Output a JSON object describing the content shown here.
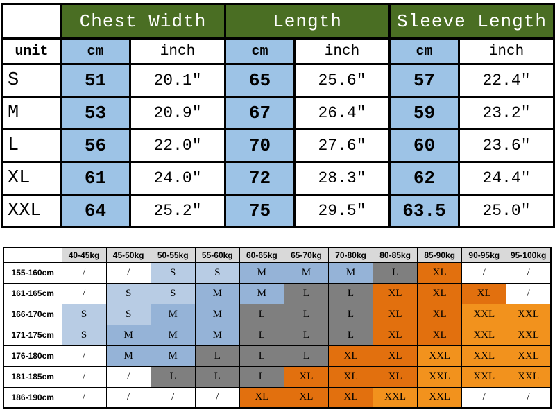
{
  "chart_data": [
    {
      "type": "table",
      "name": "garment_measurements",
      "corner_label": "",
      "unit_label": "unit",
      "groups": [
        "Chest Width",
        "Length",
        "Sleeve Length"
      ],
      "sub_columns": [
        "cm",
        "inch",
        "cm",
        "inch",
        "cm",
        "inch"
      ],
      "rows": [
        {
          "size": "S",
          "values": [
            "51",
            "20.1\"",
            "65",
            "25.6\"",
            "57",
            "22.4\""
          ]
        },
        {
          "size": "M",
          "values": [
            "53",
            "20.9\"",
            "67",
            "26.4\"",
            "59",
            "23.2\""
          ]
        },
        {
          "size": "L",
          "values": [
            "56",
            "22.0\"",
            "70",
            "27.6\"",
            "60",
            "23.6\""
          ]
        },
        {
          "size": "XL",
          "values": [
            "61",
            "24.0\"",
            "72",
            "28.3\"",
            "62",
            "24.4\""
          ]
        },
        {
          "size": "XXL",
          "values": [
            "64",
            "25.2\"",
            "75",
            "29.5\"",
            "63.5",
            "25.0\""
          ]
        }
      ]
    },
    {
      "type": "table",
      "name": "size_by_height_and_weight",
      "corner_label": "",
      "weight_columns": [
        "40-45kg",
        "45-50kg",
        "50-55kg",
        "55-60kg",
        "60-65kg",
        "65-70kg",
        "70-80kg",
        "80-85kg",
        "85-90kg",
        "90-95kg",
        "95-100kg"
      ],
      "rows": [
        {
          "height": "155-160cm",
          "cells": [
            "/",
            "/",
            "S",
            "S",
            "M",
            "M",
            "M",
            "L",
            "XL",
            "/",
            "/"
          ]
        },
        {
          "height": "161-165cm",
          "cells": [
            "/",
            "S",
            "S",
            "M",
            "M",
            "L",
            "L",
            "XL",
            "XL",
            "XL",
            "/"
          ]
        },
        {
          "height": "166-170cm",
          "cells": [
            "S",
            "S",
            "M",
            "M",
            "L",
            "L",
            "L",
            "XL",
            "XL",
            "XXL",
            "XXL"
          ]
        },
        {
          "height": "171-175cm",
          "cells": [
            "S",
            "M",
            "M",
            "M",
            "L",
            "L",
            "L",
            "XL",
            "XL",
            "XXL",
            "XXL"
          ]
        },
        {
          "height": "176-180cm",
          "cells": [
            "/",
            "M",
            "M",
            "L",
            "L",
            "L",
            "XL",
            "XL",
            "XXL",
            "XXL",
            "XXL"
          ]
        },
        {
          "height": "181-185cm",
          "cells": [
            "/",
            "/",
            "L",
            "L",
            "L",
            "XL",
            "XL",
            "XL",
            "XXL",
            "XXL",
            "XXL"
          ]
        },
        {
          "height": "186-190cm",
          "cells": [
            "/",
            "/",
            "/",
            "/",
            "XL",
            "XL",
            "XL",
            "XXL",
            "XXL",
            "/",
            "/"
          ]
        }
      ]
    }
  ],
  "colors": {
    "group_header_green": "#4a6e23",
    "cm_cell_blue": "#9dc3e6",
    "size_s": "#b8cce4",
    "size_m": "#95b3d7",
    "size_l": "#7f7f7f",
    "size_xl": "#e2700e",
    "size_xxl": "#f2921d",
    "kg_header_bg": "#d9d9d9"
  }
}
